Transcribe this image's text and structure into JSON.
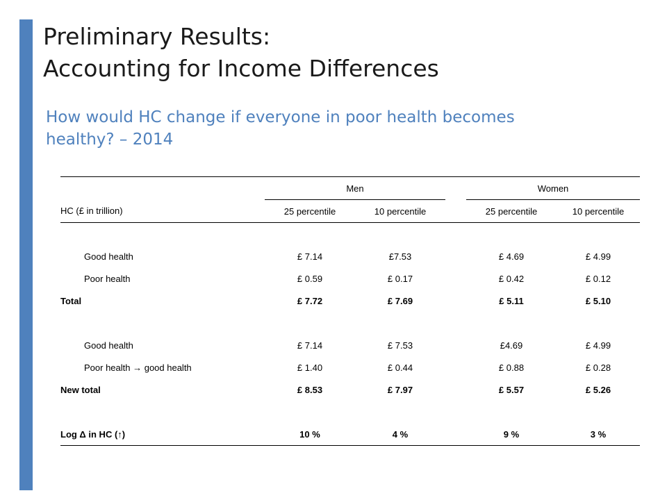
{
  "slide": {
    "title_line1": "Preliminary Results:",
    "title_line2": "Accounting for Income Differences",
    "subtitle_line1": "How would HC change if everyone in poor health becomes",
    "subtitle_line2": "healthy? – 2014",
    "accent_color": "#4f81bd"
  },
  "table": {
    "group_men": "Men",
    "group_women": "Women",
    "row_header": "HC (£ in trillion)",
    "columns": [
      "25 percentile",
      "10 percentile",
      "25 percentile",
      "10 percentile"
    ],
    "rows": [
      {
        "label": "Good health",
        "values": [
          "£ 7.14",
          "£7.53",
          "£ 4.69",
          "£ 4.99"
        ]
      },
      {
        "label": "Poor health",
        "values": [
          "£ 0.59",
          "£ 0.17",
          "£ 0.42",
          "£ 0.12"
        ]
      },
      {
        "label": "Total",
        "values": [
          "£ 7.72",
          "£ 7.69",
          "£ 5.11",
          "£ 5.10"
        ]
      },
      {
        "label": "Good health",
        "values": [
          "£ 7.14",
          "£ 7.53",
          "£4.69",
          "£ 4.99"
        ]
      },
      {
        "label": "Poor health → good health",
        "values": [
          "£ 1.40",
          "£ 0.44",
          "£ 0.88",
          "£ 0.28"
        ]
      },
      {
        "label": "New total",
        "values": [
          "£ 8.53",
          "£ 7.97",
          "£ 5.57",
          "£ 5.26"
        ]
      },
      {
        "label": "Log Δ in HC (↑)",
        "values": [
          "10 %",
          "4 %",
          "9 %",
          "3 %"
        ]
      }
    ]
  }
}
